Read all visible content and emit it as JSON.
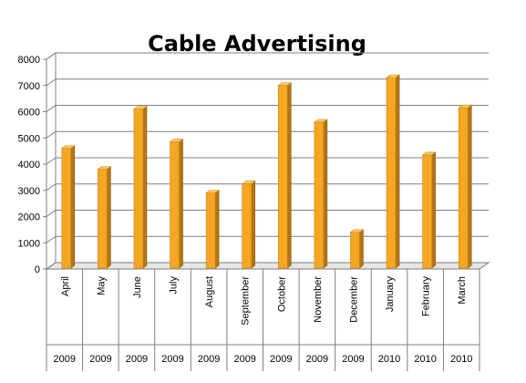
{
  "chart_data": {
    "type": "bar",
    "title": "Cable Advertising",
    "xlabel": "",
    "ylabel": "",
    "ylim": [
      0,
      8000
    ],
    "yticks": [
      0,
      1000,
      2000,
      3000,
      4000,
      5000,
      6000,
      7000,
      8000
    ],
    "grid": true,
    "legend": "none",
    "bar_color": "#F5A623",
    "categories": [
      "April",
      "May",
      "June",
      "July",
      "August",
      "September",
      "October",
      "November",
      "December",
      "January",
      "February",
      "March"
    ],
    "years": [
      "2009",
      "2009",
      "2009",
      "2009",
      "2009",
      "2009",
      "2009",
      "2009",
      "2009",
      "2010",
      "2010",
      "2010"
    ],
    "values": [
      4600,
      3800,
      6100,
      4850,
      2900,
      3250,
      7000,
      5600,
      1400,
      7300,
      4350,
      6150
    ]
  }
}
